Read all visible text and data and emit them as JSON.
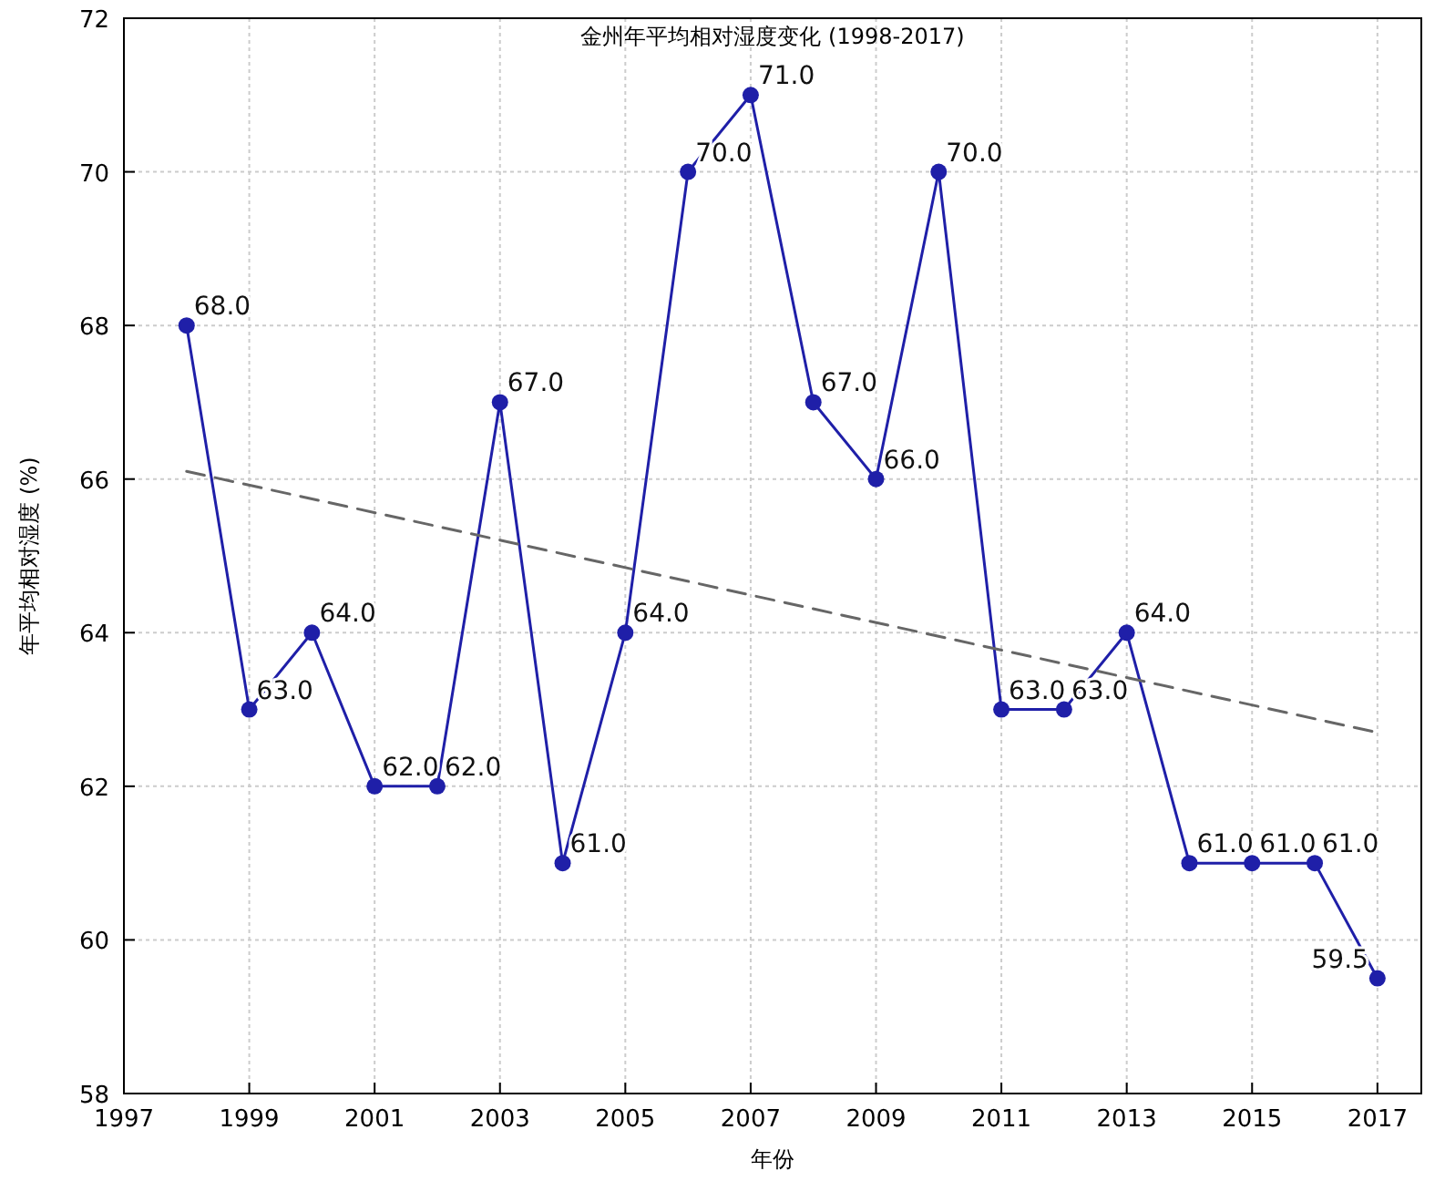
{
  "chart_data": {
    "type": "line",
    "title": "金州年平均相对湿度变化 (1998-2017)",
    "xlabel": "年份",
    "ylabel": "年平均相对湿度 (%)",
    "xlim": [
      1997,
      2017.7
    ],
    "xticks": [
      1997,
      1999,
      2001,
      2003,
      2005,
      2007,
      2009,
      2011,
      2013,
      2015,
      2017
    ],
    "ylim": [
      58,
      72
    ],
    "yticks": [
      58,
      60,
      62,
      64,
      66,
      68,
      70,
      72
    ],
    "grid": true,
    "series": [
      {
        "color": "#1f1fa8",
        "marker": "circle",
        "line_style": "solid",
        "x": [
          1998,
          1999,
          2000,
          2001,
          2002,
          2003,
          2004,
          2005,
          2006,
          2007,
          2008,
          2009,
          2010,
          2011,
          2012,
          2013,
          2014,
          2015,
          2016,
          2017
        ],
        "values": [
          68,
          63,
          64,
          62,
          62,
          67,
          61,
          64,
          70,
          71,
          67,
          66,
          70,
          63,
          63,
          64,
          61,
          61,
          61,
          59.5
        ],
        "value_labels": [
          "68.0",
          "63.0",
          "64.0",
          "62.0",
          "62.0",
          "67.0",
          "61.0",
          "64.0",
          "70.0",
          "71.0",
          "67.0",
          "66.0",
          "70.0",
          "63.0",
          "63.0",
          "64.0",
          "61.0",
          "61.0",
          "61.0",
          "59.5"
        ]
      },
      {
        "color": "#666666",
        "marker": "none",
        "line_style": "dashed",
        "x": [
          1998,
          2017
        ],
        "values": [
          66.1,
          62.7
        ]
      }
    ]
  }
}
